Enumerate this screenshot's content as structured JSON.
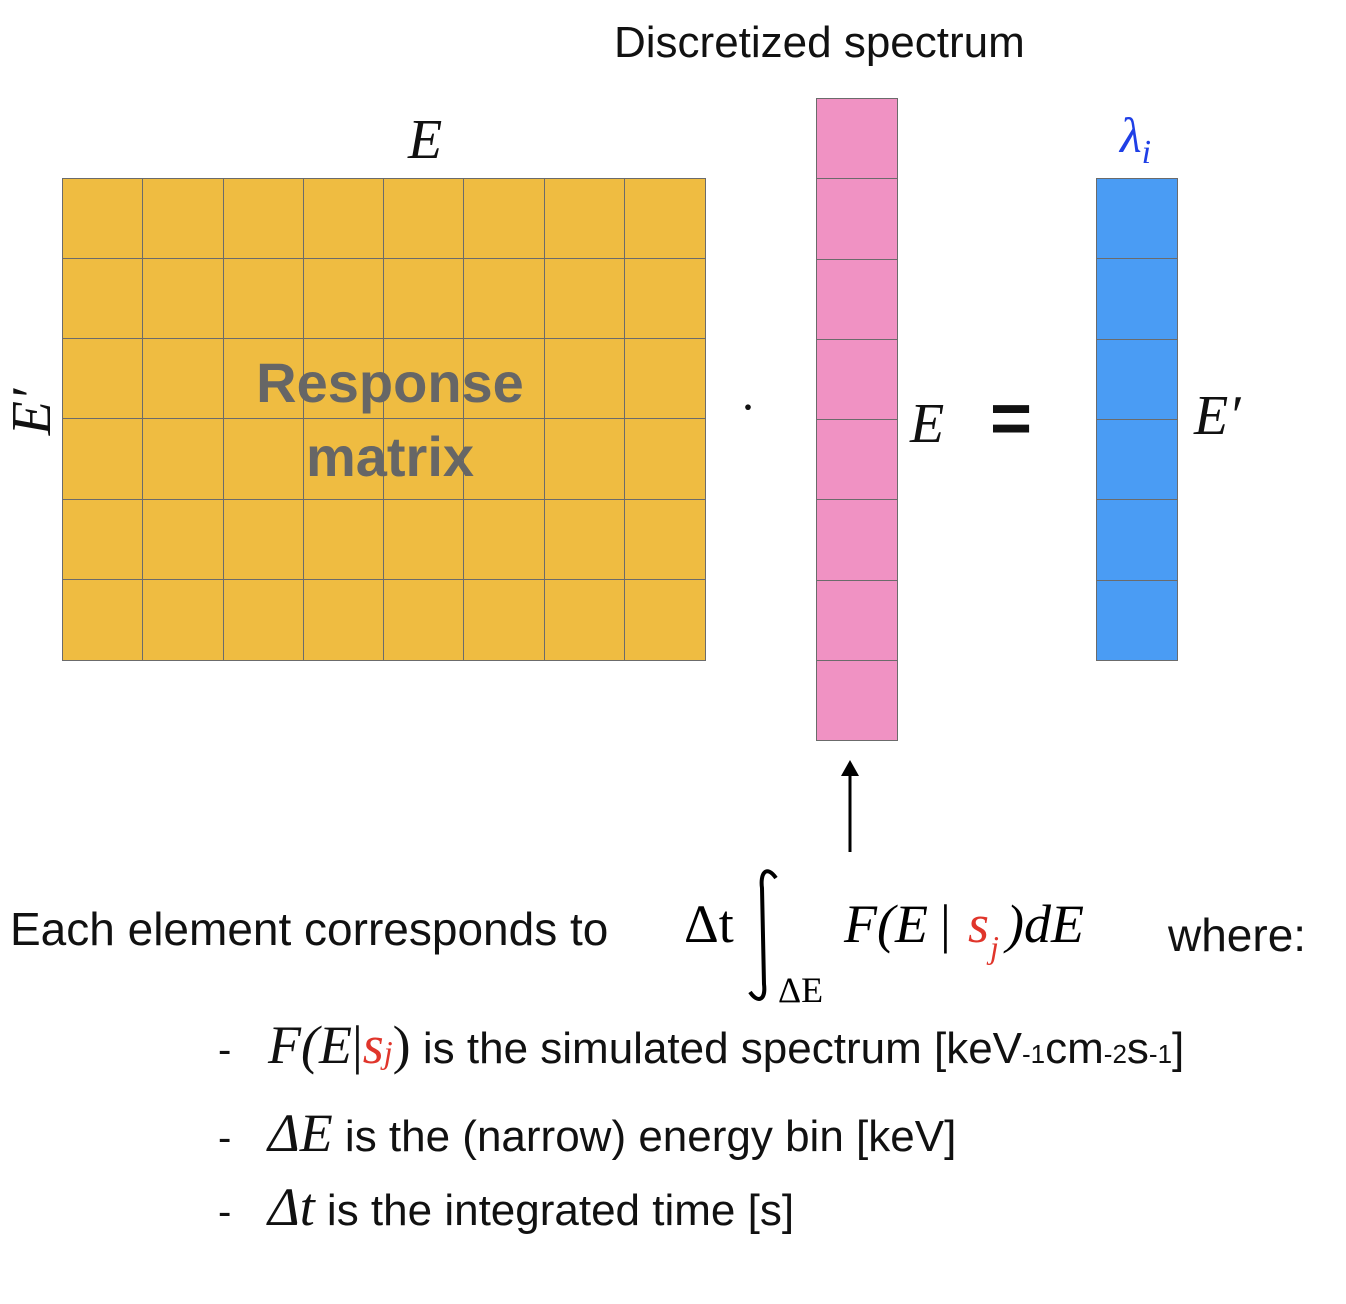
{
  "title": "Discretized spectrum",
  "matrix": {
    "label_line1": "Response",
    "label_line2": "matrix",
    "rows": 6,
    "cols": 8,
    "color": "#EFBC41"
  },
  "spectrum_column": {
    "cells": 8,
    "color": "#F092C3"
  },
  "lambda_column": {
    "cells": 6,
    "color": "#4A9CF4"
  },
  "labels": {
    "E_top": "E",
    "E_prime_left": "E′",
    "lambda": "λ",
    "lambda_sub": "i",
    "dot": "·",
    "E_mid": "E",
    "equals": "=",
    "E_prime_right": "E′"
  },
  "formula": {
    "delta_t": "Δt",
    "integral_sub": "ΔE",
    "F_open": "F(E",
    "bar": "|",
    "s": "s",
    "s_sub": "j",
    "close": ")dE"
  },
  "text": {
    "each_element": "Each element corresponds to",
    "where": "where:"
  },
  "bullets": [
    {
      "dash": "-",
      "math_F": "F(E",
      "bar": "|",
      "s": "s",
      "s_sub": "j",
      "close": ")",
      "text": " is the simulated spectrum [keV",
      "u1": "-1",
      "t2": "cm",
      "u2": "-2",
      "t3": "s",
      "u3": "-1",
      "t4": "]"
    },
    {
      "dash": "-",
      "math": "ΔE",
      "text": " is the (narrow) energy bin [keV]"
    },
    {
      "dash": "-",
      "math": "Δt",
      "text": " is the integrated time [s]"
    }
  ]
}
